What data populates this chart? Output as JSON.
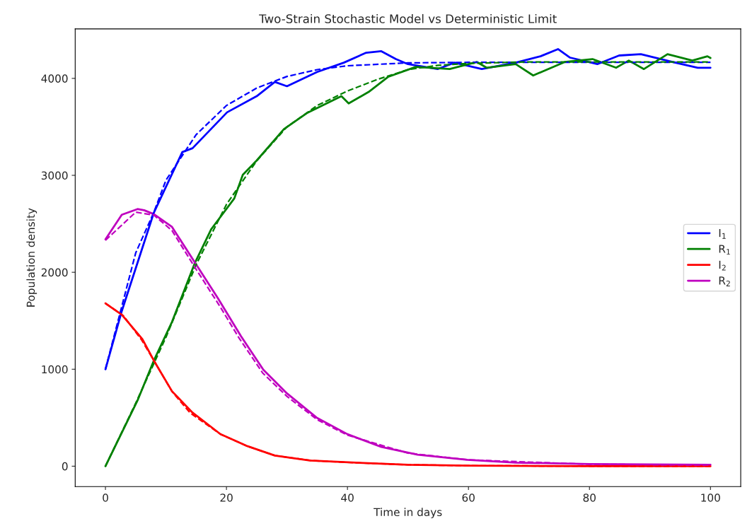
{
  "chart_data": {
    "type": "line",
    "title": "Two-Strain Stochastic Model vs Deterministic Limit",
    "xlabel": "Time in days",
    "ylabel": "Population density",
    "xlim": [
      -5,
      105
    ],
    "xticks": [
      0,
      20,
      40,
      60,
      80,
      100
    ],
    "ylim": [
      -210,
      4510
    ],
    "yticks": [
      0,
      1000,
      2000,
      3000,
      4000
    ],
    "grid": false,
    "legend": "right",
    "marker": "none",
    "series": [
      {
        "name": "I$_{1}$",
        "color": "#0000ff",
        "line_style": "solid",
        "x": [
          0,
          2.7,
          8,
          12.7,
          14.4,
          20.1,
          25,
          28,
          30,
          35,
          39.4,
          43.1,
          45.6,
          48,
          50,
          54.9,
          57.7,
          62.2,
          67.8,
          71.9,
          74.8,
          76.8,
          81.3,
          84.9,
          88.5,
          94.2,
          97.9,
          100
        ],
        "values": [
          1000,
          1600,
          2615,
          3240,
          3280,
          3650,
          3816,
          3963,
          3919,
          4066,
          4162,
          4265,
          4280,
          4199,
          4147,
          4096,
          4162,
          4096,
          4162,
          4228,
          4302,
          4214,
          4147,
          4236,
          4250,
          4162,
          4110,
          4110
        ]
      },
      {
        "name": "R$_{1}$",
        "color": "#008000",
        "line_style": "solid",
        "x": [
          0,
          5.3,
          8,
          11,
          14.8,
          17.5,
          21.3,
          22.7,
          25,
          29.5,
          33.4,
          39,
          40.2,
          43.5,
          46.7,
          51.3,
          56.9,
          61.4,
          63,
          67.8,
          70.7,
          75.9,
          80.5,
          84.4,
          86.5,
          89,
          92.9,
          97,
          99.5,
          100
        ],
        "values": [
          0,
          678,
          1090,
          1488,
          2099,
          2446,
          2762,
          3005,
          3153,
          3477,
          3646,
          3816,
          3742,
          3860,
          4015,
          4118,
          4096,
          4169,
          4110,
          4147,
          4030,
          4169,
          4199,
          4110,
          4184,
          4096,
          4250,
          4184,
          4228,
          4210
        ]
      },
      {
        "name": "I$_{2}$",
        "color": "#ff0000",
        "line_style": "solid",
        "x": [
          0,
          2.7,
          6.1,
          8,
          11,
          14.4,
          19,
          23.5,
          28,
          33.8,
          41.4,
          50,
          60,
          80,
          100
        ],
        "values": [
          1680,
          1562,
          1311,
          1090,
          773,
          552,
          331,
          206,
          110,
          59,
          37,
          15,
          5,
          1,
          0
        ]
      },
      {
        "name": "R$_{2}$",
        "color": "#bf00bf",
        "line_style": "solid",
        "x": [
          0,
          2.7,
          5.3,
          6.4,
          8,
          11,
          14.8,
          18.6,
          22.4,
          26.1,
          30,
          34.9,
          40,
          45.6,
          51.6,
          59.8,
          67.8,
          80,
          100
        ],
        "values": [
          2340,
          2593,
          2652,
          2640,
          2600,
          2468,
          2099,
          1731,
          1341,
          994,
          751,
          501,
          330,
          199,
          118,
          66,
          37,
          22,
          15
        ]
      },
      {
        "color": "#0000ff",
        "line_style": "dashed",
        "x": [
          0,
          5,
          8,
          10,
          15,
          20,
          25,
          30,
          35,
          40,
          50,
          60,
          100
        ],
        "values": [
          1000,
          2200,
          2620,
          2950,
          3420,
          3720,
          3900,
          4020,
          4090,
          4130,
          4160,
          4165,
          4165
        ]
      },
      {
        "color": "#008000",
        "line_style": "dashed",
        "x": [
          0,
          5,
          10,
          15,
          20,
          25,
          30,
          35,
          40,
          45,
          50,
          55,
          60,
          70,
          100
        ],
        "values": [
          0,
          650,
          1330,
          2080,
          2700,
          3150,
          3500,
          3720,
          3870,
          3990,
          4090,
          4135,
          4155,
          4170,
          4170
        ]
      },
      {
        "color": "#ff0000",
        "line_style": "dashed",
        "x": [
          0,
          3,
          6,
          8,
          11,
          14,
          19,
          23.5,
          28,
          34,
          41,
          50,
          60,
          80,
          100
        ],
        "values": [
          1680,
          1550,
          1300,
          1090,
          770,
          550,
          330,
          205,
          110,
          58,
          36,
          15,
          5,
          1,
          0
        ]
      },
      {
        "color": "#bf00bf",
        "line_style": "dashed",
        "x": [
          0,
          5,
          8,
          11,
          15,
          19,
          22,
          26,
          30,
          35,
          40,
          50,
          60,
          80,
          100
        ],
        "values": [
          2330,
          2620,
          2590,
          2430,
          2030,
          1640,
          1330,
          960,
          720,
          480,
          320,
          135,
          65,
          20,
          12
        ]
      }
    ]
  }
}
